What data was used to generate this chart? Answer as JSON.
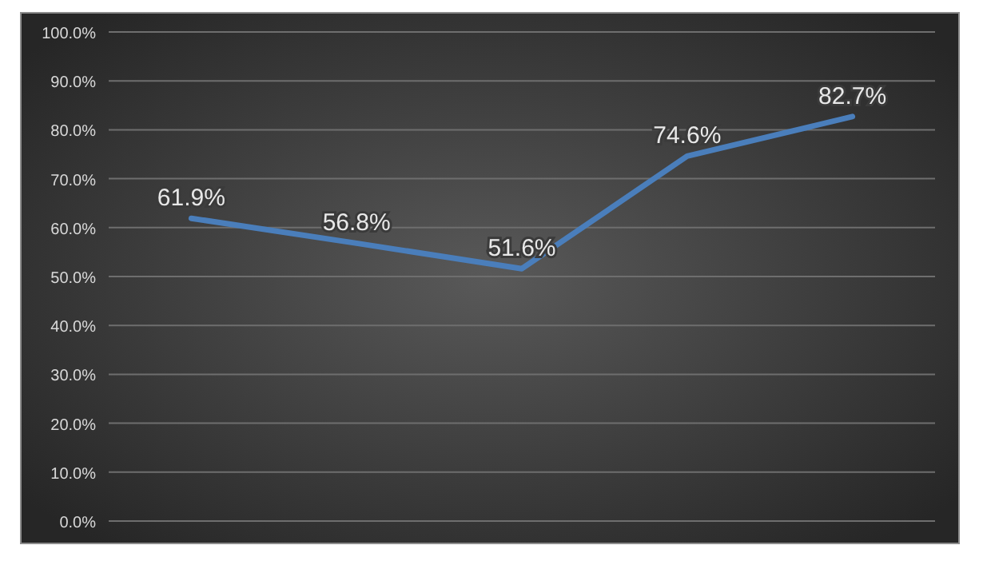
{
  "chart_data": {
    "type": "line",
    "categories": [
      null,
      null,
      null,
      null,
      null
    ],
    "series": [
      {
        "color": "#4a7ebb",
        "values": [
          61.9,
          56.8,
          51.6,
          74.6,
          82.7
        ],
        "value_labels": [
          "61.9%",
          "56.8%",
          "51.6%",
          "74.6%",
          "82.7%"
        ]
      }
    ],
    "ylim": [
      0,
      100
    ],
    "yticks": [
      {
        "value": 0,
        "label": "0.0%"
      },
      {
        "value": 10,
        "label": "10.0%"
      },
      {
        "value": 20,
        "label": "20.0%"
      },
      {
        "value": 30,
        "label": "30.0%"
      },
      {
        "value": 40,
        "label": "40.0%"
      },
      {
        "value": 50,
        "label": "50.0%"
      },
      {
        "value": 60,
        "label": "60.0%"
      },
      {
        "value": 70,
        "label": "70.0%"
      },
      {
        "value": 80,
        "label": "80.0%"
      },
      {
        "value": 90,
        "label": "90.0%"
      },
      {
        "value": 100,
        "label": "100.0%"
      }
    ],
    "grid": "y",
    "marker": "none",
    "line_style": "solid"
  }
}
